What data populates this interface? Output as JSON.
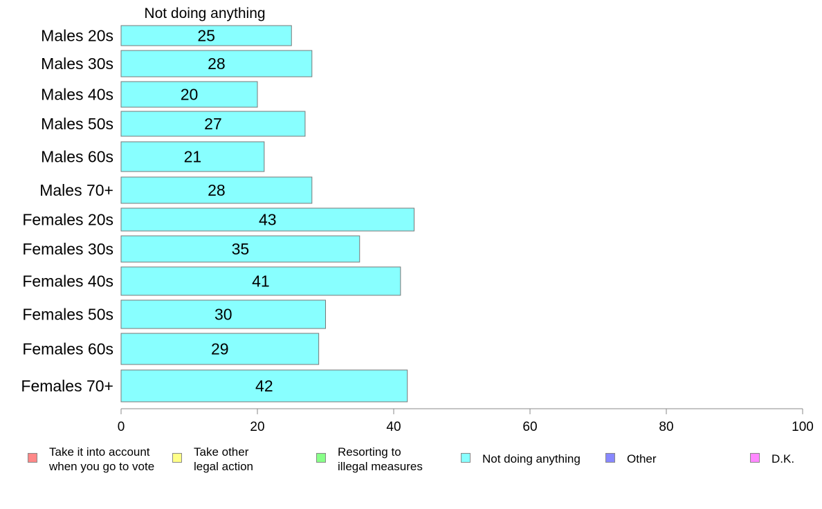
{
  "chart_data": {
    "type": "bar",
    "orientation": "horizontal",
    "title": "Not doing anything",
    "categories": [
      "Males 20s",
      "Males 30s",
      "Males 40s",
      "Males 50s",
      "Males 60s",
      "Males 70+",
      "Females 20s",
      "Females 30s",
      "Females 40s",
      "Females 50s",
      "Females 60s",
      "Females 70+"
    ],
    "values": [
      25,
      28,
      20,
      27,
      21,
      28,
      43,
      35,
      41,
      30,
      29,
      42
    ],
    "xlim": [
      0,
      100
    ],
    "xticks": [
      "0",
      "20",
      "40",
      "60",
      "80",
      "100"
    ],
    "bar_color": "#88ffff",
    "grid": false,
    "legend_placement": "bottom"
  },
  "legend": [
    {
      "lines": [
        "Take it into account",
        "when you go to vote"
      ],
      "color": "#ff8888"
    },
    {
      "lines": [
        "Take other",
        "legal action"
      ],
      "color": "#ffff88"
    },
    {
      "lines": [
        "Resorting to",
        "illegal measures"
      ],
      "color": "#88ff88"
    },
    {
      "lines": [
        "Not doing anything"
      ],
      "color": "#88ffff"
    },
    {
      "lines": [
        "Other"
      ],
      "color": "#8888ff"
    },
    {
      "lines": [
        "D.K."
      ],
      "color": "#ff88ff"
    }
  ]
}
